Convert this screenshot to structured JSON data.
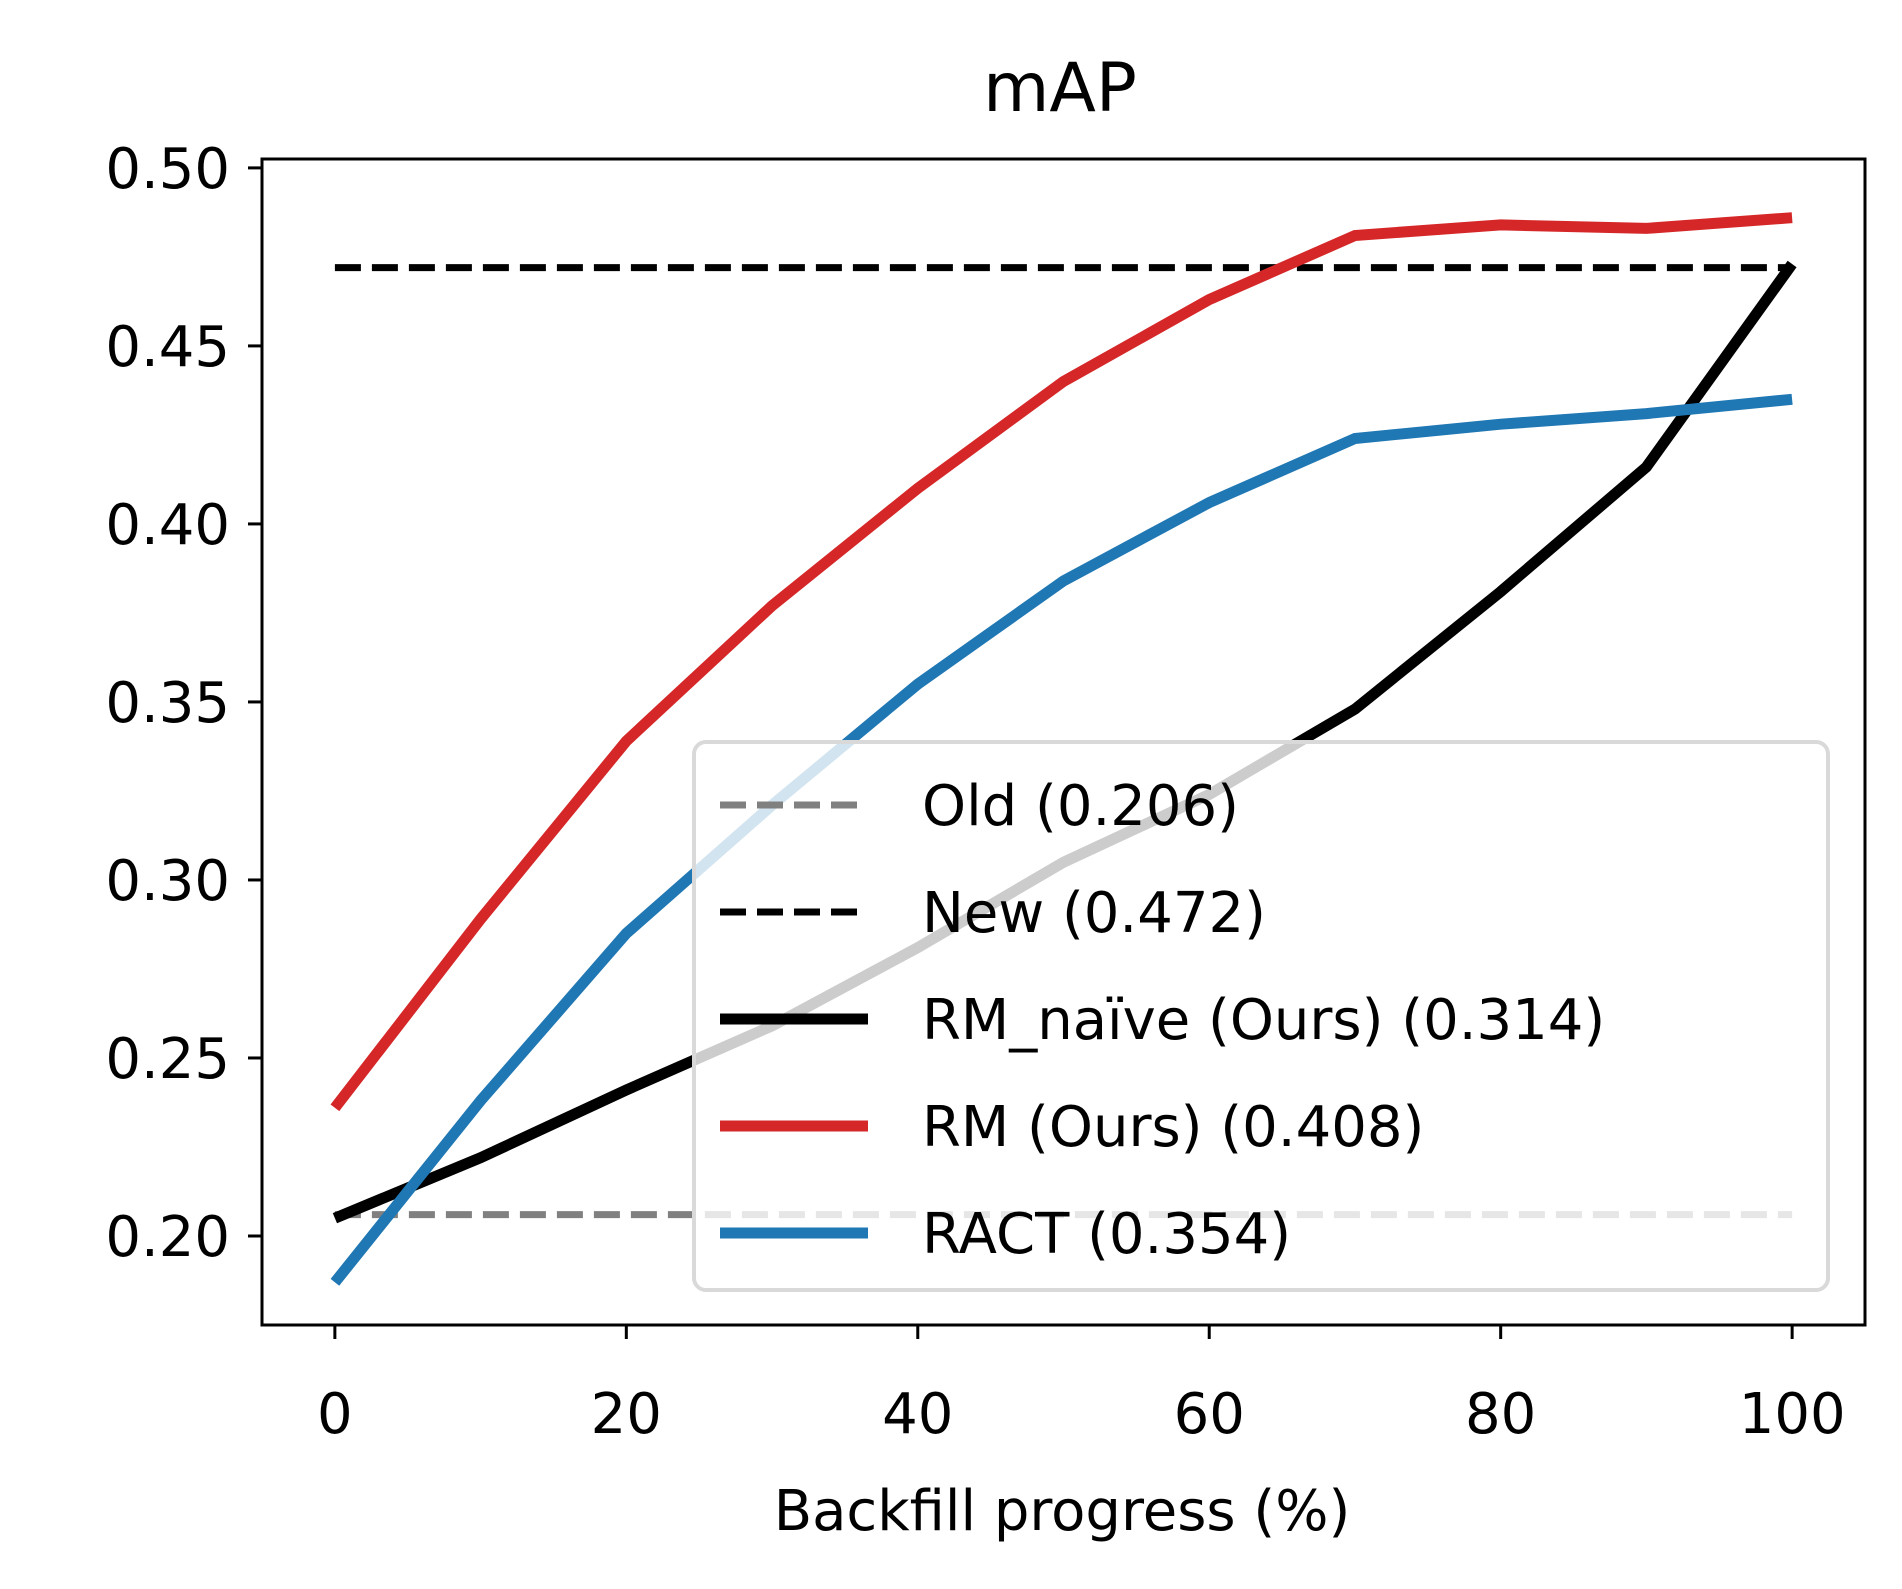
{
  "chart_data": {
    "type": "line",
    "title": "mAP",
    "xlabel": "Backfill progress (%)",
    "ylabel": "",
    "xlim": [
      -5,
      105
    ],
    "ylim": [
      0.175,
      0.5025
    ],
    "xticks": [
      0,
      20,
      40,
      60,
      80,
      100
    ],
    "xtick_labels": [
      "0",
      "20",
      "40",
      "60",
      "80",
      "100"
    ],
    "yticks": [
      0.2,
      0.25,
      0.3,
      0.35,
      0.4,
      0.45,
      0.5
    ],
    "ytick_labels": [
      "0.20",
      "0.25",
      "0.30",
      "0.35",
      "0.40",
      "0.45",
      "0.50"
    ],
    "grid": false,
    "legend_position": "lower-right",
    "x": [
      0,
      10,
      20,
      30,
      40,
      50,
      60,
      70,
      80,
      90,
      100
    ],
    "series": [
      {
        "name": "Old (0.206)",
        "values": [
          0.206,
          0.206,
          0.206,
          0.206,
          0.206,
          0.206,
          0.206,
          0.206,
          0.206,
          0.206,
          0.206
        ],
        "color": "#808080",
        "dash": "dashed"
      },
      {
        "name": "New (0.472)",
        "values": [
          0.472,
          0.472,
          0.472,
          0.472,
          0.472,
          0.472,
          0.472,
          0.472,
          0.472,
          0.472,
          0.472
        ],
        "color": "#000000",
        "dash": "dashed"
      },
      {
        "name": "RM_naïve (Ours) (0.314)",
        "values": [
          0.205,
          0.222,
          0.241,
          0.259,
          0.281,
          0.305,
          0.324,
          0.348,
          0.381,
          0.416,
          0.473
        ],
        "color": "#000000",
        "dash": "solid"
      },
      {
        "name": "RM (Ours) (0.408)",
        "values": [
          0.236,
          0.289,
          0.339,
          0.377,
          0.41,
          0.44,
          0.463,
          0.481,
          0.484,
          0.483,
          0.486
        ],
        "color": "#d62728",
        "dash": "solid"
      },
      {
        "name": "RACT (0.354)",
        "values": [
          0.187,
          0.238,
          0.285,
          0.321,
          0.355,
          0.384,
          0.406,
          0.424,
          0.428,
          0.431,
          0.435
        ],
        "color": "#1f77b4",
        "dash": "solid"
      }
    ]
  }
}
